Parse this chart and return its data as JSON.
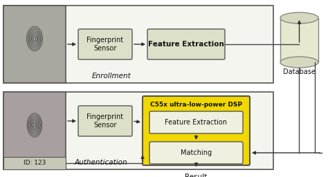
{
  "bg_color": "#ffffff",
  "border_color": "#555555",
  "box_light": "#e8eba8",
  "box_gray": "#d8d8c0",
  "box_yellow": "#f0d800",
  "box_white": "#f0f0e8",
  "fp_bg": "#b0b0a8",
  "arrow_color": "#333333",
  "text_dark": "#111111",
  "db_fill": "#e8e8d8",
  "db_top": "#d0d0c0",
  "enroll_bg": "#f5f5f0",
  "auth_bg": "#f5f5f0",
  "enrollment_label": "Enrollment",
  "authentication_label": "Authentication",
  "result_label": "Result",
  "database_label": "Database",
  "fp_sensor_label": "Fingerprint\nSensor",
  "feature_extraction_label": "Feature Extraction",
  "dsp_label": "C55x ultra-low-power DSP",
  "feat_ext_inner_label": "Feature Extraction",
  "matching_label": "Matching",
  "id_label": "ID: 123",
  "figw": 4.74,
  "figh": 2.56,
  "dpi": 100
}
